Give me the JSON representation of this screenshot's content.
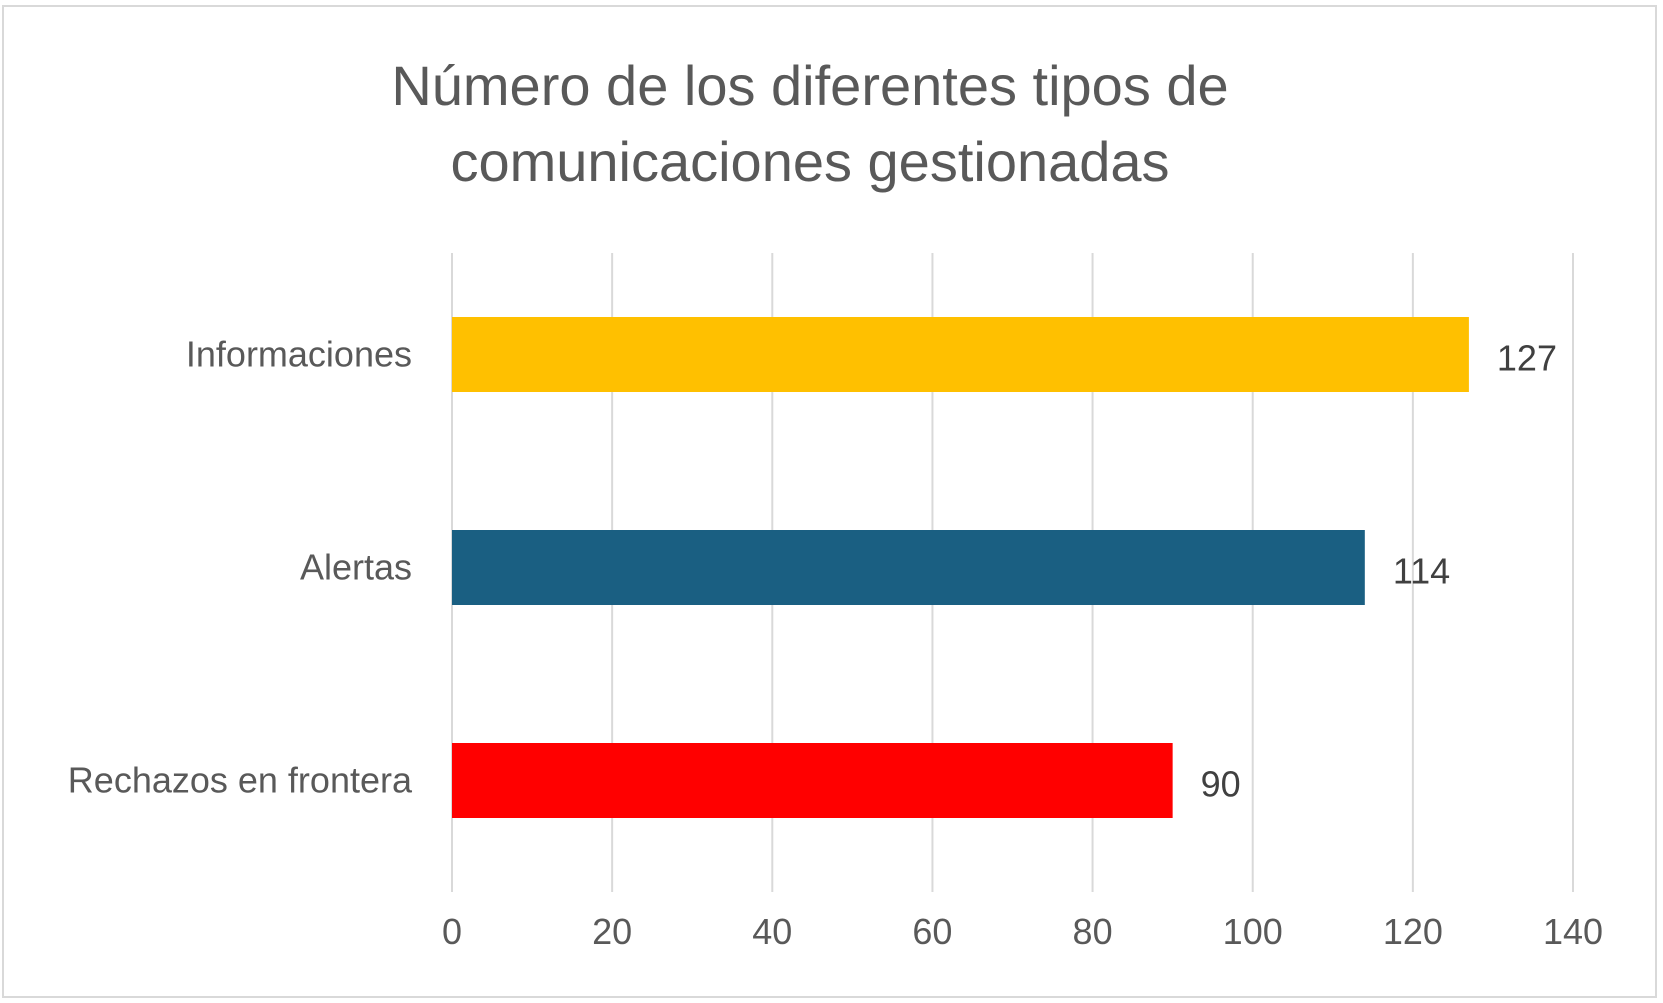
{
  "chart_data": {
    "type": "bar",
    "orientation": "horizontal",
    "title": "Número de los diferentes tipos de\ncomunicaciones gestionadas",
    "categories": [
      "Informaciones",
      "Alertas",
      "Rechazos en frontera"
    ],
    "values": [
      127,
      114,
      90
    ],
    "data_labels": [
      "127",
      "114",
      "90"
    ],
    "colors": [
      "#FFC000",
      "#1A5F82",
      "#FF0000"
    ],
    "xlim": [
      0,
      140
    ],
    "xticks": [
      0,
      20,
      40,
      60,
      80,
      100,
      120,
      140
    ],
    "tick_labels": [
      "0",
      "20",
      "40",
      "60",
      "80",
      "100",
      "120",
      "140"
    ],
    "grid": true,
    "legend": "none",
    "text_color": "#595959",
    "label_color": "#404040",
    "grid_color": "#d9d9d9"
  }
}
